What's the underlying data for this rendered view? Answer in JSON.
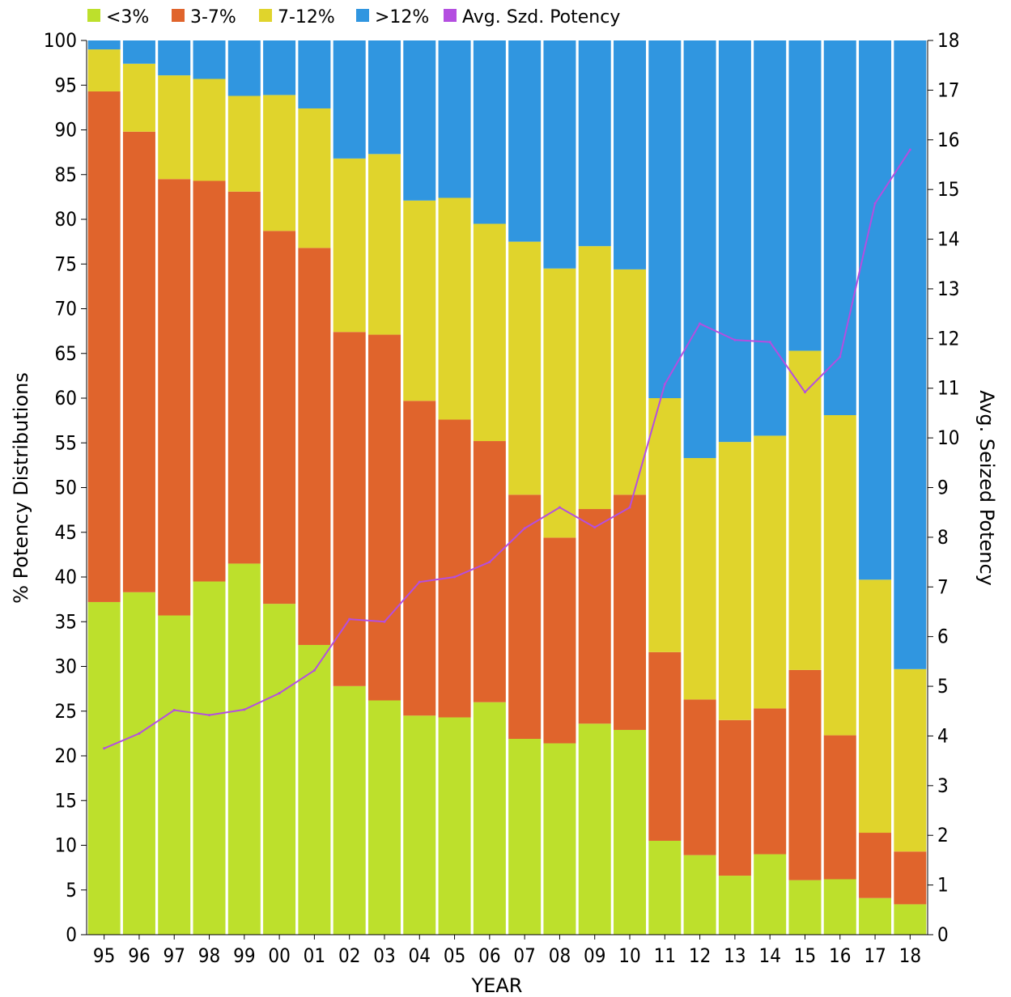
{
  "chart_data": {
    "type": "bar",
    "stacked": true,
    "categories": [
      "95",
      "96",
      "97",
      "98",
      "99",
      "00",
      "01",
      "02",
      "03",
      "04",
      "05",
      "06",
      "07",
      "08",
      "09",
      "10",
      "11",
      "12",
      "13",
      "14",
      "15",
      "16",
      "17",
      "18"
    ],
    "series": [
      {
        "name": "<3%",
        "color": "#bde02c",
        "values": [
          37.2,
          38.3,
          35.7,
          39.5,
          41.5,
          37.0,
          32.4,
          27.8,
          26.2,
          24.5,
          24.3,
          26.0,
          21.9,
          21.4,
          23.6,
          22.9,
          10.5,
          8.9,
          6.6,
          9.0,
          6.1,
          6.2,
          4.1,
          3.4
        ]
      },
      {
        "name": "3-7%",
        "color": "#e0642c",
        "values": [
          57.1,
          51.5,
          48.8,
          44.8,
          41.6,
          41.7,
          44.4,
          39.6,
          40.9,
          35.2,
          33.3,
          29.2,
          27.3,
          23.0,
          24.0,
          26.3,
          21.1,
          17.4,
          17.4,
          16.3,
          23.5,
          16.1,
          7.3,
          5.9
        ]
      },
      {
        "name": "7-12%",
        "color": "#e0d42c",
        "values": [
          4.7,
          7.6,
          11.6,
          11.4,
          10.7,
          15.2,
          15.6,
          19.4,
          20.2,
          22.4,
          24.8,
          24.3,
          28.3,
          30.1,
          29.4,
          25.2,
          28.4,
          27.0,
          31.1,
          30.5,
          35.7,
          35.8,
          28.3,
          20.4
        ]
      },
      {
        "name": ">12%",
        "color": "#3096e0",
        "values": [
          1.0,
          2.6,
          3.9,
          4.3,
          6.2,
          6.1,
          7.6,
          13.2,
          12.7,
          17.9,
          17.6,
          20.5,
          22.5,
          25.5,
          23.0,
          25.6,
          40.0,
          46.7,
          44.9,
          44.2,
          34.7,
          41.9,
          60.3,
          70.3
        ]
      }
    ],
    "line": {
      "name": "Avg. Szd. Potency",
      "color": "#b44ee0",
      "values": [
        3.75,
        4.05,
        4.52,
        4.42,
        4.53,
        4.86,
        5.32,
        6.35,
        6.3,
        7.1,
        7.2,
        7.5,
        8.18,
        8.6,
        8.2,
        8.6,
        11.08,
        12.3,
        11.97,
        11.93,
        10.92,
        11.63,
        14.72,
        15.8
      ]
    },
    "xlabel": "YEAR",
    "ylabel": "% Potency Distributions",
    "y2label": "Avg. Seized Potency",
    "ylim": [
      0,
      100
    ],
    "y2lim": [
      0,
      18
    ],
    "yticks": [
      "0",
      "5",
      "10",
      "15",
      "20",
      "25",
      "30",
      "35",
      "40",
      "45",
      "50",
      "55",
      "60",
      "65",
      "70",
      "75",
      "80",
      "85",
      "90",
      "95",
      "100"
    ],
    "y2ticks": [
      "0",
      "1",
      "2",
      "3",
      "4",
      "5",
      "6",
      "7",
      "8",
      "9",
      "10",
      "11",
      "12",
      "13",
      "14",
      "15",
      "16",
      "17",
      "18"
    ],
    "legend": [
      {
        "label": "<3%",
        "color": "#bde02c",
        "icon": "square-swatch"
      },
      {
        "label": "3-7%",
        "color": "#e0642c",
        "icon": "square-swatch"
      },
      {
        "label": "7-12%",
        "color": "#e0d42c",
        "icon": "square-swatch"
      },
      {
        "label": ">12%",
        "color": "#3096e0",
        "icon": "square-swatch"
      },
      {
        "label": "Avg. Szd. Potency",
        "color": "#b44ee0",
        "icon": "square-swatch"
      }
    ],
    "legend_position": "top-left",
    "grid": false
  }
}
